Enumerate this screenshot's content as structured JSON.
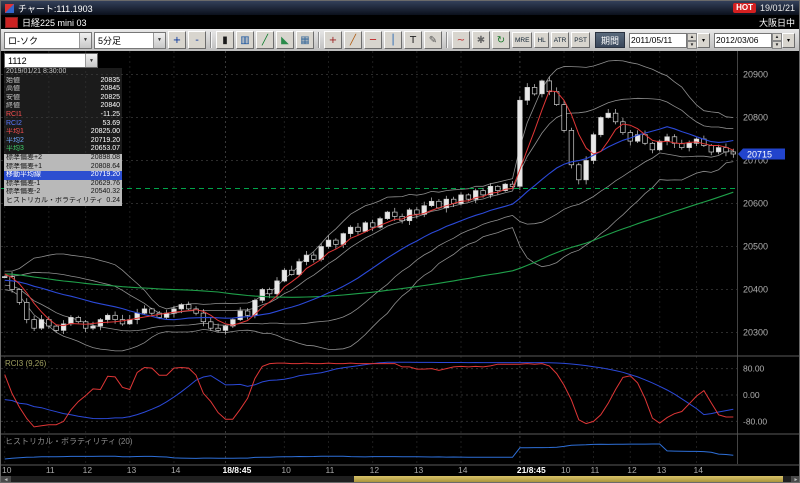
{
  "titlebar": {
    "title": "チャート:111.1903",
    "hot_badge": "HOT",
    "date": "19/01/21"
  },
  "infobar": {
    "instrument": "日経225 mini 03",
    "session": "大阪日中"
  },
  "toolbar": {
    "chart_type": "ロ-ソク",
    "timeframe": "5分足",
    "icons": [
      {
        "name": "zoom-in-icon",
        "glyph": "+",
        "color": "#00309a"
      },
      {
        "name": "zoom-out-icon",
        "glyph": "-",
        "color": "#00309a"
      },
      {
        "sep": true
      },
      {
        "name": "candlestick-chart-icon",
        "glyph": "▮",
        "color": "#1a1a1a"
      },
      {
        "name": "bar-chart-icon",
        "glyph": "▥",
        "color": "#0a4a9a"
      },
      {
        "name": "line-chart-icon",
        "glyph": "╱",
        "color": "#0a7a2a"
      },
      {
        "name": "area-chart-icon",
        "glyph": "◣",
        "color": "#2a8a4a"
      },
      {
        "name": "grid-icon",
        "glyph": "▦",
        "color": "#3a6a9a"
      },
      {
        "sep": true
      },
      {
        "name": "crosshair-icon",
        "glyph": "+",
        "color": "#9a1a1a"
      },
      {
        "name": "trend-line-icon",
        "glyph": "╱",
        "color": "#b05a10"
      },
      {
        "name": "horizontal-line-icon",
        "glyph": "─",
        "color": "#c01a1a"
      },
      {
        "name": "vertical-line-icon",
        "glyph": "│",
        "color": "#105ab0"
      },
      {
        "name": "text-annotation-icon",
        "glyph": "T",
        "color": "#222222"
      },
      {
        "name": "pencil-icon",
        "glyph": "✎",
        "color": "#555555"
      },
      {
        "sep": true
      },
      {
        "name": "wave-indicator-icon",
        "glyph": "~",
        "color": "#c02a2a"
      },
      {
        "name": "settings-icon",
        "glyph": "✱",
        "color": "#666666"
      },
      {
        "name": "refresh-icon",
        "glyph": "↻",
        "color": "#1a7a2a"
      }
    ],
    "text_buttons": [
      "MRE",
      "HL",
      "ATR",
      "PST"
    ],
    "period_label": "期間",
    "date_from": "2011/05/11",
    "date_to": "2012/03/06"
  },
  "symbol_box": {
    "value": "1112"
  },
  "data_panel": {
    "rows": [
      {
        "label": "2019/01/21 8:30:00",
        "value": "",
        "style": "date"
      },
      {
        "label": "始値",
        "value": "20835",
        "style": "plain"
      },
      {
        "label": "高値",
        "value": "20845",
        "style": "plain"
      },
      {
        "label": "安値",
        "value": "20825",
        "style": "plain"
      },
      {
        "label": "終値",
        "value": "20840",
        "style": "plain"
      },
      {
        "label": "RCI1",
        "value": "-11.25",
        "style": "plain",
        "label_color": "#ff5050"
      },
      {
        "label": "RCI2",
        "value": "53.69",
        "style": "plain",
        "label_color": "#5b78ff"
      },
      {
        "label": "平均1",
        "value": "20825.00",
        "style": "plain",
        "label_color": "#ff5050"
      },
      {
        "label": "平均2",
        "value": "20719.20",
        "style": "plain",
        "label_color": "#6fa8ff"
      },
      {
        "label": "平均3",
        "value": "20653.07",
        "style": "plain",
        "label_color": "#3fce6a"
      },
      {
        "label": "標準偏差+2",
        "value": "20898.08",
        "style": "gray"
      },
      {
        "label": "標準偏差+1",
        "value": "20808.64",
        "style": "gray"
      },
      {
        "label": "移動平均線",
        "value": "20719.20",
        "style": "blue"
      },
      {
        "label": "標準偏差-1",
        "value": "20629.76",
        "style": "gray"
      },
      {
        "label": "標準偏差-2",
        "value": "20540.32",
        "style": "gray"
      },
      {
        "label": "ヒストリカル・ボラティリティ",
        "value": "0.24",
        "style": "gray"
      }
    ]
  },
  "chart_data": {
    "type": "candlestick",
    "title": "日経225 mini 03 5分足",
    "y_range": [
      20250,
      20950
    ],
    "y_ticks": [
      20300,
      20400,
      20500,
      20600,
      20700,
      20800,
      20900
    ],
    "last_price": 20715,
    "reference_line": 20635,
    "session_breaks": [
      30,
      70
    ],
    "pre_closes": [
      20480,
      20475,
      20470,
      20478,
      20465,
      20460,
      20468,
      20455,
      20450,
      20458,
      20445,
      20450,
      20440,
      20445,
      20435,
      20440,
      20430,
      20438,
      20428,
      20432,
      20425,
      20430,
      20420,
      20428,
      20418,
      20422,
      20415,
      20420,
      20412,
      20418,
      20410,
      20415,
      20408,
      20412,
      20405,
      20410,
      20440,
      20445,
      20435,
      20430
    ],
    "closes": [
      20430,
      20400,
      20370,
      20330,
      20310,
      20330,
      20315,
      20305,
      20320,
      20335,
      20325,
      20310,
      20315,
      20330,
      20340,
      20330,
      20320,
      20330,
      20345,
      20355,
      20345,
      20335,
      20345,
      20355,
      20365,
      20355,
      20345,
      20325,
      20310,
      20305,
      20315,
      20330,
      20350,
      20340,
      20375,
      20400,
      20390,
      20420,
      20445,
      20435,
      20465,
      20480,
      20470,
      20500,
      20515,
      20505,
      20530,
      20545,
      20535,
      20555,
      20545,
      20565,
      20580,
      20570,
      20560,
      20585,
      20575,
      20595,
      20605,
      20590,
      20610,
      20600,
      20620,
      20610,
      20630,
      20620,
      20640,
      20630,
      20645,
      20640,
      20840,
      20870,
      20855,
      20885,
      20860,
      20830,
      20770,
      20690,
      20655,
      20700,
      20760,
      20800,
      20810,
      20790,
      20765,
      20745,
      20760,
      20740,
      20725,
      20745,
      20755,
      20740,
      20730,
      20740,
      20750,
      20735,
      20720,
      20730,
      20720,
      20715
    ],
    "x_labels": [
      {
        "label": "10",
        "i": 0
      },
      {
        "label": "11",
        "i": 6
      },
      {
        "label": "12",
        "i": 11
      },
      {
        "label": "13",
        "i": 17
      },
      {
        "label": "14",
        "i": 23
      },
      {
        "label": "18/8:45",
        "i": 30,
        "strong": true
      },
      {
        "label": "10",
        "i": 38
      },
      {
        "label": "11",
        "i": 44
      },
      {
        "label": "12",
        "i": 50
      },
      {
        "label": "13",
        "i": 56
      },
      {
        "label": "14",
        "i": 62
      },
      {
        "label": "21/8:45",
        "i": 70,
        "strong": true
      },
      {
        "label": "10",
        "i": 76
      },
      {
        "label": "11",
        "i": 80
      },
      {
        "label": "12",
        "i": 85
      },
      {
        "label": "13",
        "i": 89
      },
      {
        "label": "14",
        "i": 94
      }
    ],
    "panes": {
      "rci": {
        "label": "RCI3 (9,26)",
        "ticks": [
          80,
          0,
          -80
        ],
        "tick_labels": [
          "80.00",
          "0.00",
          "-80.00"
        ]
      },
      "hv": {
        "label": "ヒストリカル・ボラティリティ (20)"
      }
    },
    "colors": {
      "up": "#e8e8e8",
      "down": "#000000",
      "wick": "#cfcfcf",
      "ma_short": "#e03636",
      "ma_mid": "#2b49d8",
      "ma_long": "#1fa04a",
      "band": "#8f8f8f",
      "ref_line": "#00a44a",
      "price_tag_bg": "#2244cc",
      "price_tag_text": "#ffffff",
      "rci_short": "#e03636",
      "rci_long": "#2b49d8",
      "hv_line": "#2e6fd8",
      "grid": "#2c2c2c",
      "axis_text": "#b0b0b0"
    }
  },
  "scrollbar": {
    "thumb_start_pct": 44,
    "thumb_end_pct": 99
  }
}
